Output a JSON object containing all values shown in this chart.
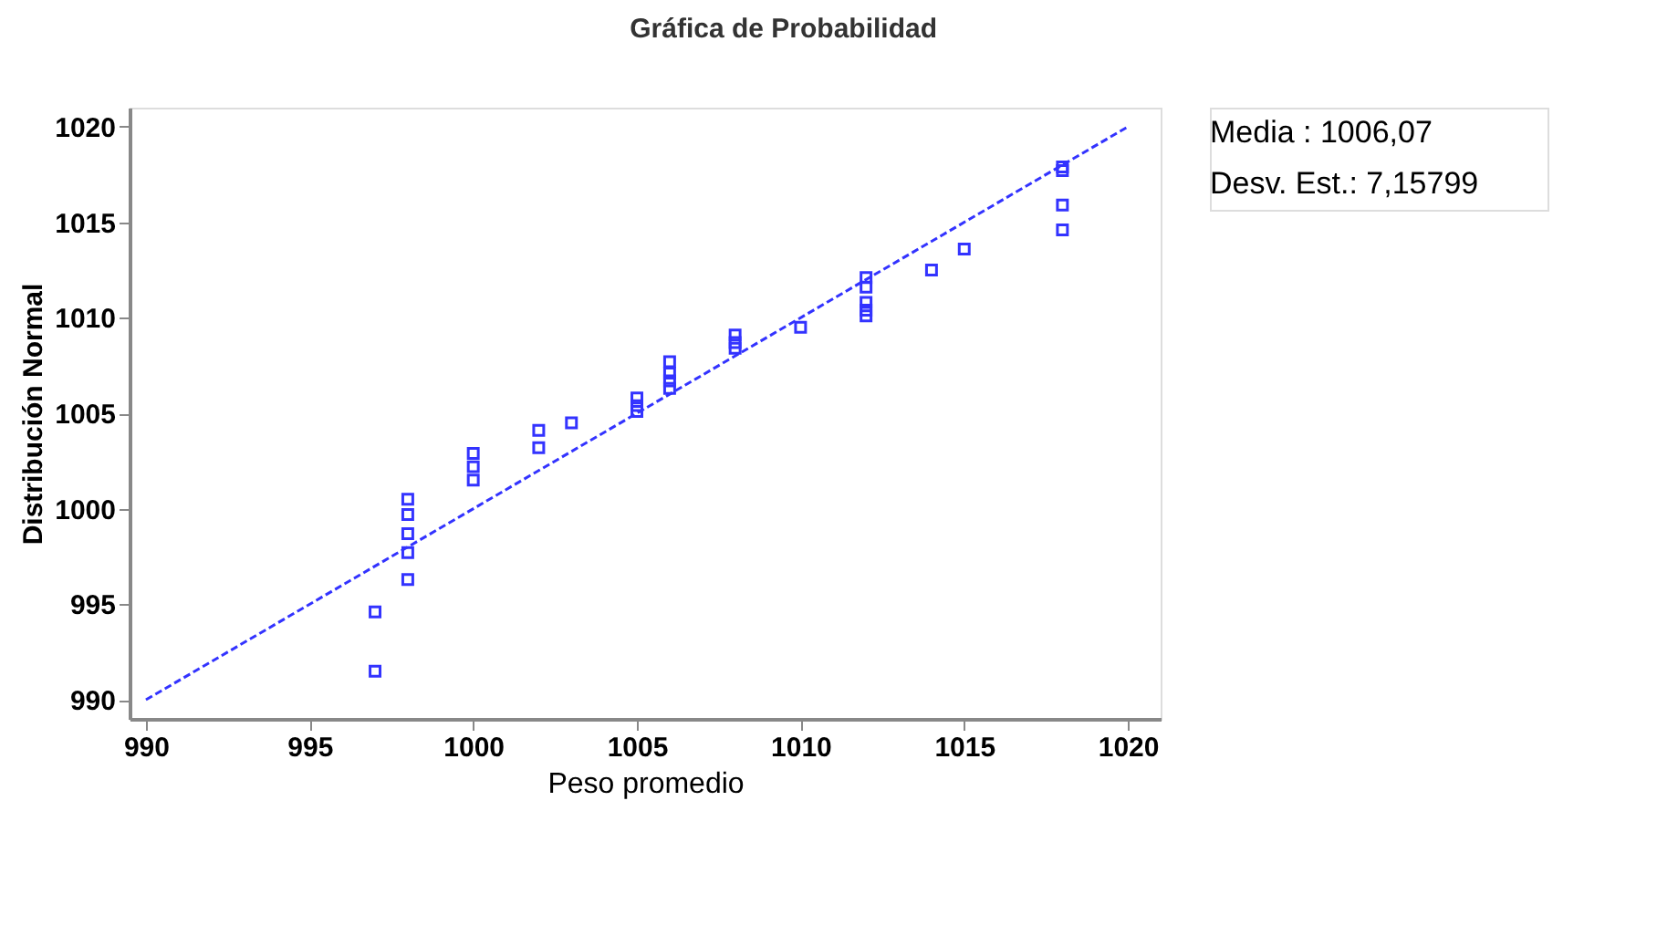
{
  "chart_data": {
    "type": "scatter",
    "title": "Gráfica de Probabilidad",
    "xlabel": "Peso promedio",
    "ylabel": "Distribución Normal",
    "annotations": [
      "Media  : 1006,07",
      "Desv. Est.: 7,15799"
    ],
    "xlim": [
      989.5,
      1021
    ],
    "ylim": [
      989,
      1021
    ],
    "xticks": [
      990,
      995,
      1000,
      1005,
      1010,
      1015,
      1020
    ],
    "yticks": [
      990,
      995,
      1000,
      1005,
      1010,
      1015,
      1020
    ],
    "marker": "square",
    "line_style": "dashed",
    "series": [
      {
        "color": "#3333ff",
        "x": [
          997,
          997,
          998,
          998,
          998,
          998,
          998,
          1000,
          1000,
          1000,
          1002,
          1002,
          1003,
          1005,
          1005,
          1005,
          1006,
          1006,
          1006,
          1006,
          1008,
          1008,
          1008,
          1010,
          1012,
          1012,
          1012,
          1012,
          1012,
          1014,
          1015,
          1018,
          1018,
          1018,
          1018
        ],
        "values": [
          994.6,
          991.5,
          1000.5,
          999.7,
          998.7,
          997.7,
          996.3,
          1002.9,
          1002.2,
          1001.5,
          1004.1,
          1003.2,
          1004.5,
          1005.8,
          1005.4,
          1005.1,
          1007.7,
          1007.1,
          1006.7,
          1006.3,
          1009.1,
          1008.7,
          1008.4,
          1009.5,
          1012.1,
          1011.6,
          1010.8,
          1010.4,
          1010.1,
          1012.5,
          1013.6,
          1017.9,
          1017.7,
          1015.9,
          1014.6
        ]
      },
      {
        "type": "line",
        "marker": "none",
        "color": "#3333ff",
        "x": [
          990,
          1020
        ],
        "values": [
          990,
          1020
        ]
      }
    ]
  }
}
